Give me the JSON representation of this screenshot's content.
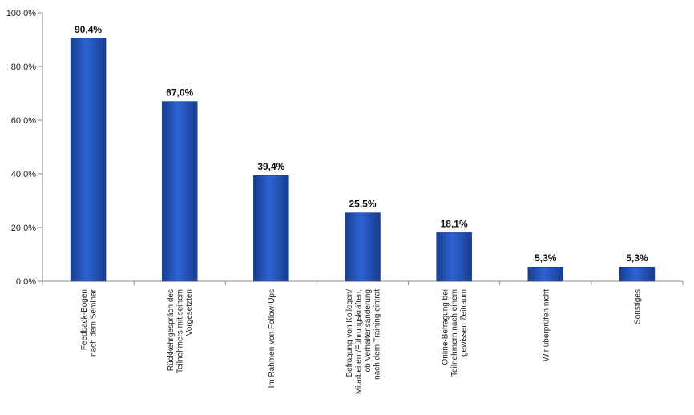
{
  "chart_data": {
    "type": "bar",
    "categories": [
      [
        "Feedback-Bogen",
        "nach dem Seminar"
      ],
      [
        "Rückkehrgespräch des",
        "Teilnehmers mit seinem",
        "Vorgesetzten"
      ],
      [
        "Im Rahmen von Follow-Ups"
      ],
      [
        "Befragung von Kollegen/",
        "Mitarbeitern/Führungskräften,",
        "ob Verhaltensänderung",
        "nach dem Training eintrat"
      ],
      [
        "Online-Befragung bei",
        "Teilnehmern nach einem",
        "gewissen Zeitraum"
      ],
      [
        "Wir überprüfen nicht"
      ],
      [
        "Sonstiges"
      ]
    ],
    "values": [
      90.4,
      67.0,
      39.4,
      25.5,
      18.1,
      5.3,
      5.3
    ],
    "value_labels": [
      "90,4%",
      "67,0%",
      "39,4%",
      "25,5%",
      "18,1%",
      "5,3%",
      "5,3%"
    ],
    "yticks": [
      0,
      20,
      40,
      60,
      80,
      100
    ],
    "ytick_labels": [
      "0,0%",
      "20,0%",
      "40,0%",
      "60,0%",
      "80,0%",
      "100,0%"
    ],
    "ylim": [
      0,
      100
    ],
    "title": "",
    "xlabel": "",
    "ylabel": "",
    "grid": false,
    "legend": "none",
    "colors": {
      "bar": "#1f4fb4",
      "bar_light": "#2e63d6",
      "bar_dark": "#173c8c",
      "axis": "#888888"
    }
  }
}
